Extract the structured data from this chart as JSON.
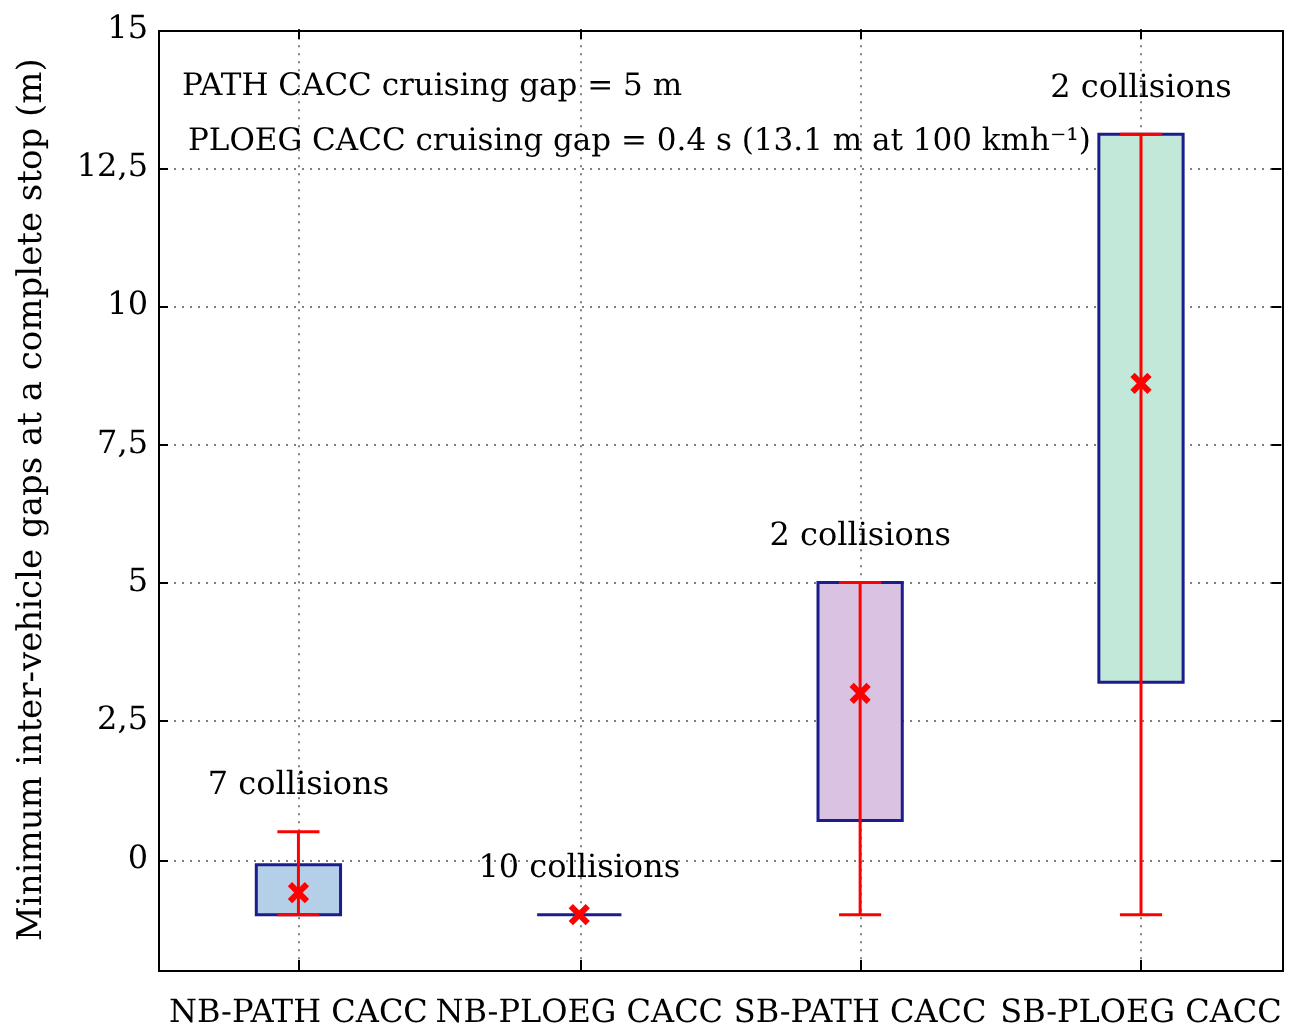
{
  "chart_data": {
    "type": "box",
    "ylabel": "Minimum inter-vehicle gaps at a complete stop (m)",
    "categories": [
      "NB-PATH CACC",
      "NB-PLOEG CACC",
      "SB-PATH CACC",
      "SB-PLOEG CACC"
    ],
    "series": [
      {
        "color": "#1c1c8c",
        "colors": [
          "#b4cfe8",
          "#1c1c8c",
          "#d9c2e2",
          "#c2e8da"
        ],
        "boxes": [
          {
            "low": -1,
            "q1": -1,
            "median": null,
            "q3": -0.1,
            "high": 0.5,
            "mean": -0.6
          },
          {
            "low": -1,
            "q1": -1,
            "median": null,
            "q3": -1,
            "high": -1,
            "mean": -1
          },
          {
            "low": -1,
            "q1": 0.7,
            "median": null,
            "q3": 5,
            "high": 5,
            "mean": 3
          },
          {
            "low": -1,
            "q1": 3.2,
            "median": null,
            "q3": 13.1,
            "high": 13.1,
            "mean": 8.6
          }
        ]
      }
    ],
    "ylim": [
      -2,
      15
    ],
    "yticks": [
      0,
      {
        "value": 2.5,
        "label": "2,5"
      },
      5,
      {
        "value": 7.5,
        "label": "7,5"
      },
      10,
      {
        "value": 12.5,
        "label": "12,5"
      },
      15
    ],
    "grid": true,
    "marker": "cross",
    "annotations": [
      "PATH CACC cruising gap = 5 m",
      {
        "text": "PLOEG CACC cruising gap = 0.4 s (13.1 m at 100 kmh⁻¹)",
        "x": "SB-PLOEG CACC",
        "y": 13.1
      },
      "7 collisions",
      "10 collisions",
      "2 collisions",
      "2 collisions"
    ]
  }
}
